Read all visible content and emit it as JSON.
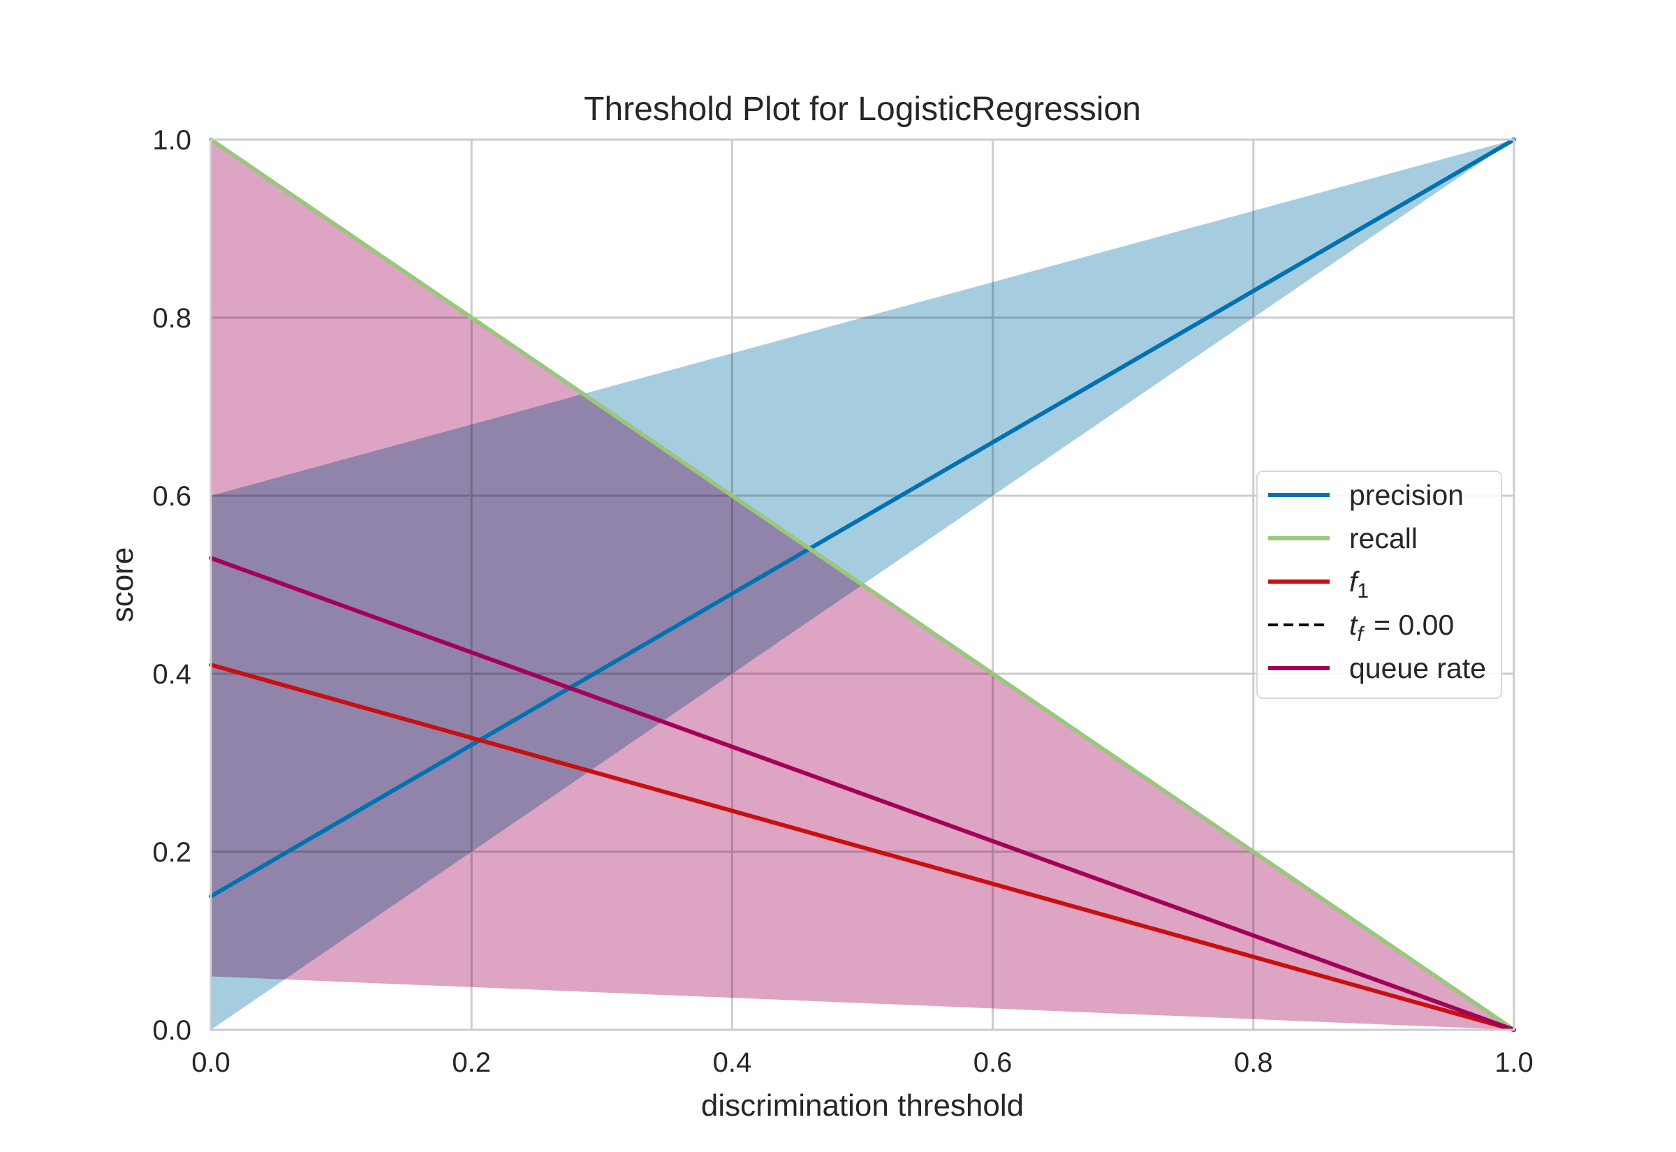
{
  "chart_data": {
    "type": "line",
    "title": "Threshold Plot for LogisticRegression",
    "xlabel": "discrimination threshold",
    "ylabel": "score",
    "xlim": [
      0.0,
      1.0
    ],
    "ylim": [
      0.0,
      1.0
    ],
    "xticks": [
      "0.0",
      "0.2",
      "0.4",
      "0.6",
      "0.8",
      "1.0"
    ],
    "yticks": [
      "0.0",
      "0.2",
      "0.4",
      "0.6",
      "0.8",
      "1.0"
    ],
    "grid": true,
    "legend_position": "center-right",
    "series": [
      {
        "name": "precision",
        "key": "precision",
        "color": "#0072b2",
        "x": [
          0.0,
          1.0
        ],
        "y": [
          0.15,
          1.0
        ],
        "band": {
          "color": "#a6cddf",
          "lower": [
            0.0,
            1.0
          ],
          "upper": [
            0.6,
            1.0
          ]
        }
      },
      {
        "name": "recall",
        "key": "recall",
        "color": "#9ac77c",
        "x": [
          0.0,
          1.0
        ],
        "y": [
          1.0,
          0.0
        ],
        "band": {
          "color": "#dea4c3",
          "lower": [
            1.0,
            0.0
          ],
          "upper": [
            1.0,
            0.0
          ]
        }
      },
      {
        "name": "f1",
        "key": "f1",
        "color": "#c90f0f",
        "x": [
          0.0,
          1.0
        ],
        "y": [
          0.41,
          0.0
        ]
      },
      {
        "name": "queue rate",
        "key": "queue_rate",
        "color": "#a4005a",
        "x": [
          0.0,
          1.0
        ],
        "y": [
          0.53,
          0.0
        ],
        "band": {
          "color": "#dea4c3",
          "lower": [
            0.06,
            0.0
          ],
          "upper": [
            1.0,
            0.0
          ]
        }
      }
    ],
    "threshold_line": {
      "label": "t_f = 0.00",
      "value": 0.0,
      "color": "#000000",
      "style": "dashed"
    },
    "legend": [
      {
        "key": "precision",
        "label": "precision",
        "color": "#0072b2",
        "style": "solid"
      },
      {
        "key": "recall",
        "label": "recall",
        "color": "#9ac77c",
        "style": "solid"
      },
      {
        "key": "f1",
        "label": "f",
        "subscript": "1",
        "color": "#c90f0f",
        "style": "solid"
      },
      {
        "key": "tf",
        "label": "t",
        "subscript": "f",
        "suffix": " = 0.00",
        "color": "#000000",
        "style": "dashed"
      },
      {
        "key": "queue_rate",
        "label": "queue rate",
        "color": "#a4005a",
        "style": "solid"
      }
    ]
  }
}
